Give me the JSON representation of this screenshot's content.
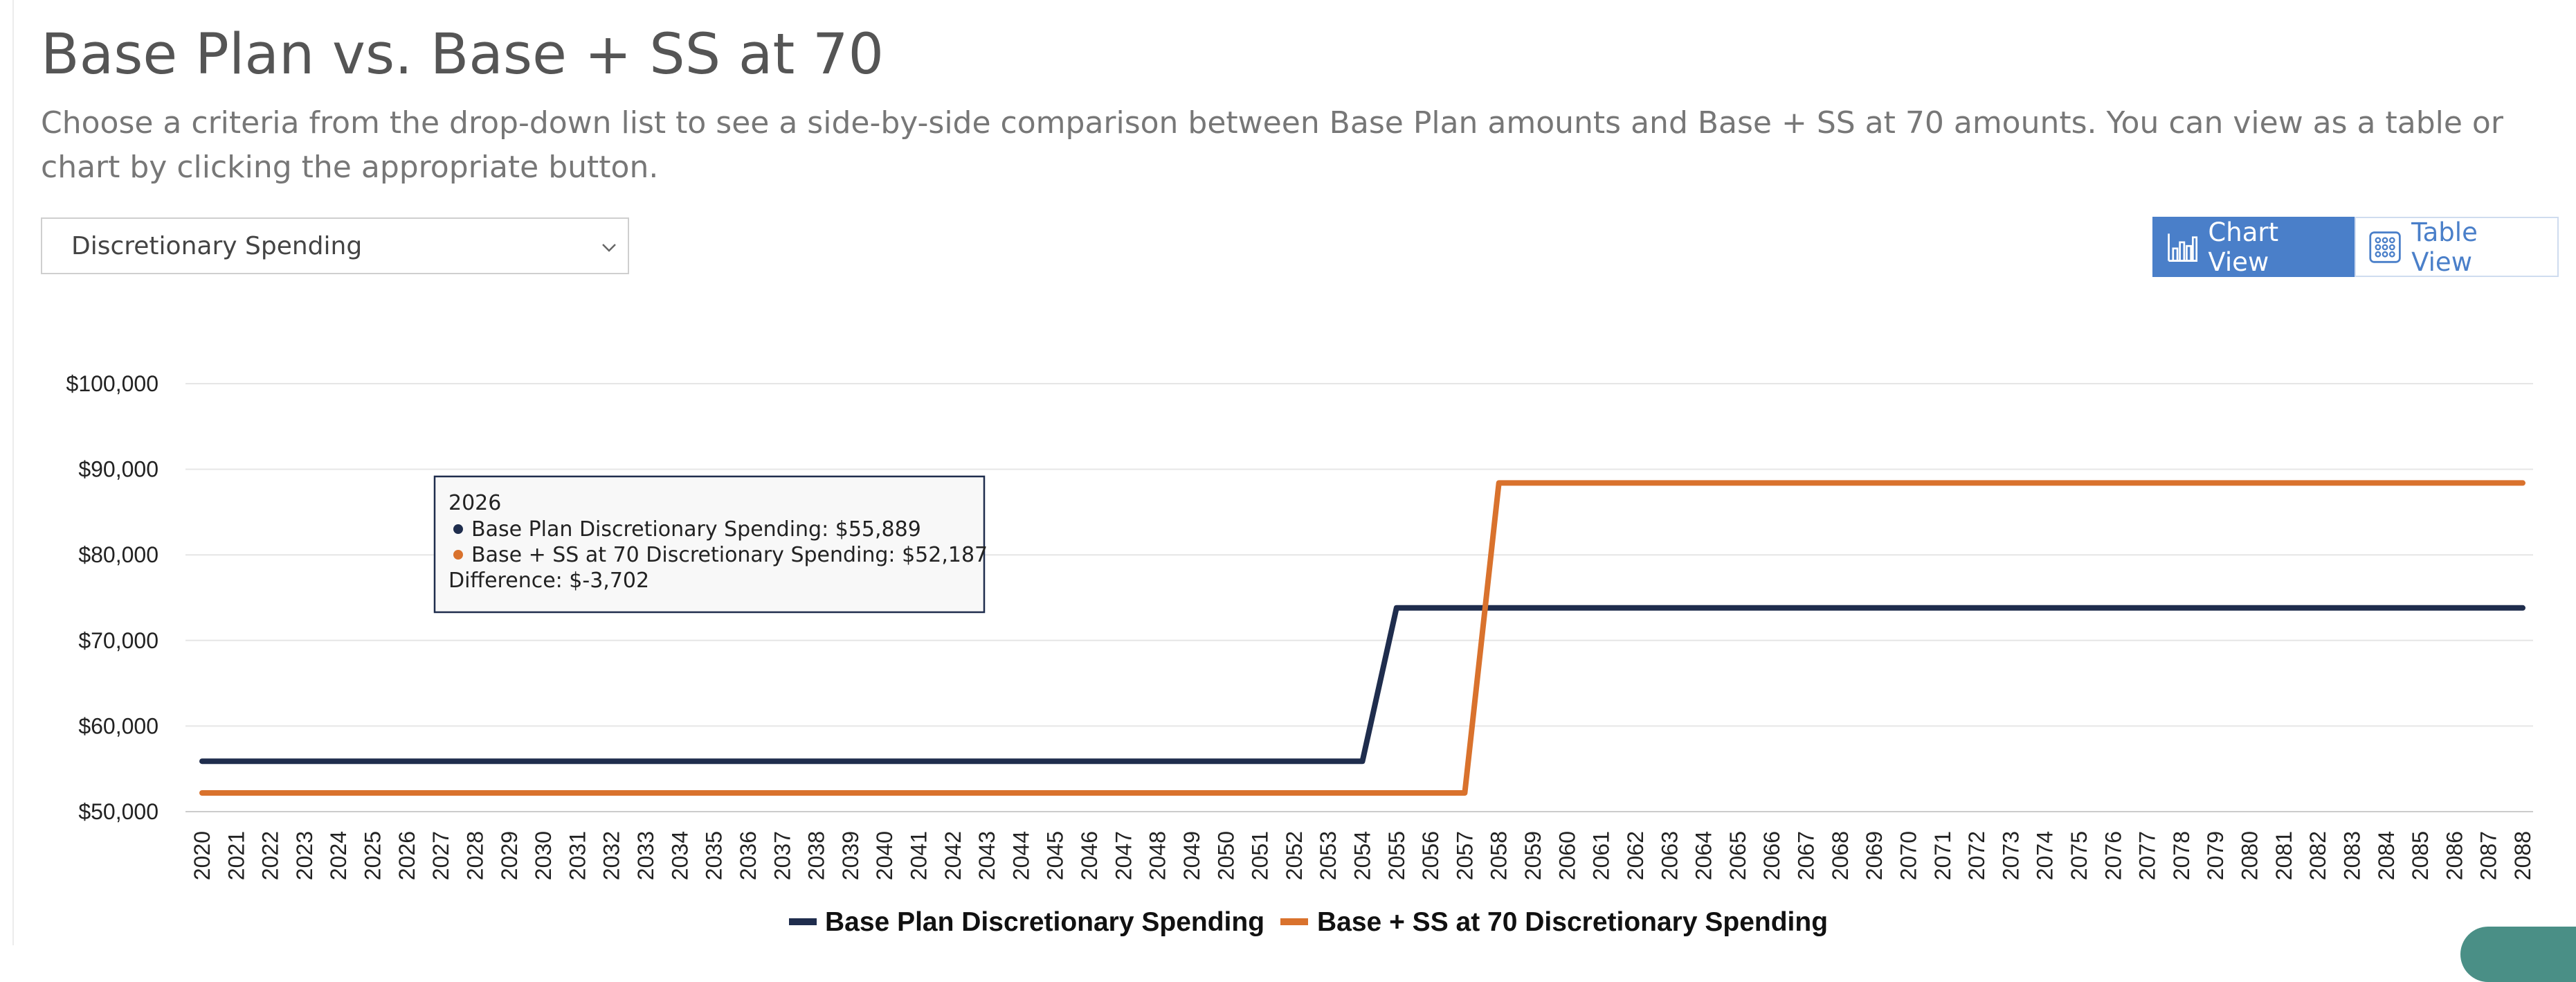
{
  "header": {
    "title": "Base Plan vs. Base + SS at 70",
    "description": "Choose a criteria from the drop-down list to see a side-by-side comparison between Base Plan amounts and Base + SS at 70 amounts. You can view as a table or chart by clicking the appropriate button."
  },
  "criteria_select": {
    "selected": "Discretionary Spending"
  },
  "view_buttons": {
    "chart_label": "Chart View",
    "table_label": "Table View"
  },
  "tooltip": {
    "year": "2026",
    "line1": "Base Plan Discretionary Spending: $55,889",
    "line2": "Base + SS at 70 Discretionary Spending: $52,187",
    "line3": "Difference: $-3,702"
  },
  "colors": {
    "series_base": "#1f2d4d",
    "series_ss70": "#d9722d",
    "accent": "#4a7fc9"
  },
  "chart_data": {
    "type": "line",
    "title": "",
    "xlabel": "",
    "ylabel": "",
    "ylim": [
      50000,
      100000
    ],
    "yticks": [
      "$50,000",
      "$60,000",
      "$70,000",
      "$80,000",
      "$90,000",
      "$100,000"
    ],
    "x": [
      "2020",
      "2021",
      "2022",
      "2023",
      "2024",
      "2025",
      "2026",
      "2027",
      "2028",
      "2029",
      "2030",
      "2031",
      "2032",
      "2033",
      "2034",
      "2035",
      "2036",
      "2037",
      "2038",
      "2039",
      "2040",
      "2041",
      "2042",
      "2043",
      "2044",
      "2045",
      "2046",
      "2047",
      "2048",
      "2049",
      "2050",
      "2051",
      "2052",
      "2053",
      "2054",
      "2055",
      "2056",
      "2057",
      "2058",
      "2059",
      "2060",
      "2061",
      "2062",
      "2063",
      "2064",
      "2065",
      "2066",
      "2067",
      "2068",
      "2069",
      "2070",
      "2071",
      "2072",
      "2073",
      "2074",
      "2075",
      "2076",
      "2077",
      "2078",
      "2079",
      "2080",
      "2081",
      "2082",
      "2083",
      "2084",
      "2085",
      "2086",
      "2087",
      "2088"
    ],
    "series": [
      {
        "name": "Base Plan Discretionary Spending",
        "values": [
          55889,
          55889,
          55889,
          55889,
          55889,
          55889,
          55889,
          55889,
          55889,
          55889,
          55889,
          55889,
          55889,
          55889,
          55889,
          55889,
          55889,
          55889,
          55889,
          55889,
          55889,
          55889,
          55889,
          55889,
          55889,
          55889,
          55889,
          55889,
          55889,
          55889,
          55889,
          55889,
          55889,
          55889,
          55889,
          73800,
          73800,
          73800,
          73800,
          73800,
          73800,
          73800,
          73800,
          73800,
          73800,
          73800,
          73800,
          73800,
          73800,
          73800,
          73800,
          73800,
          73800,
          73800,
          73800,
          73800,
          73800,
          73800,
          73800,
          73800,
          73800,
          73800,
          73800,
          73800,
          73800,
          73800,
          73800,
          73800,
          73800
        ]
      },
      {
        "name": "Base + SS at 70 Discretionary Spending",
        "values": [
          52187,
          52187,
          52187,
          52187,
          52187,
          52187,
          52187,
          52187,
          52187,
          52187,
          52187,
          52187,
          52187,
          52187,
          52187,
          52187,
          52187,
          52187,
          52187,
          52187,
          52187,
          52187,
          52187,
          52187,
          52187,
          52187,
          52187,
          52187,
          52187,
          52187,
          52187,
          52187,
          52187,
          52187,
          52187,
          52187,
          52187,
          52187,
          88400,
          88400,
          88400,
          88400,
          88400,
          88400,
          88400,
          88400,
          88400,
          88400,
          88400,
          88400,
          88400,
          88400,
          88400,
          88400,
          88400,
          88400,
          88400,
          88400,
          88400,
          88400,
          88400,
          88400,
          88400,
          88400,
          88400,
          88400,
          88400,
          88400,
          88400
        ]
      }
    ],
    "legend": "bottom",
    "grid": true
  }
}
